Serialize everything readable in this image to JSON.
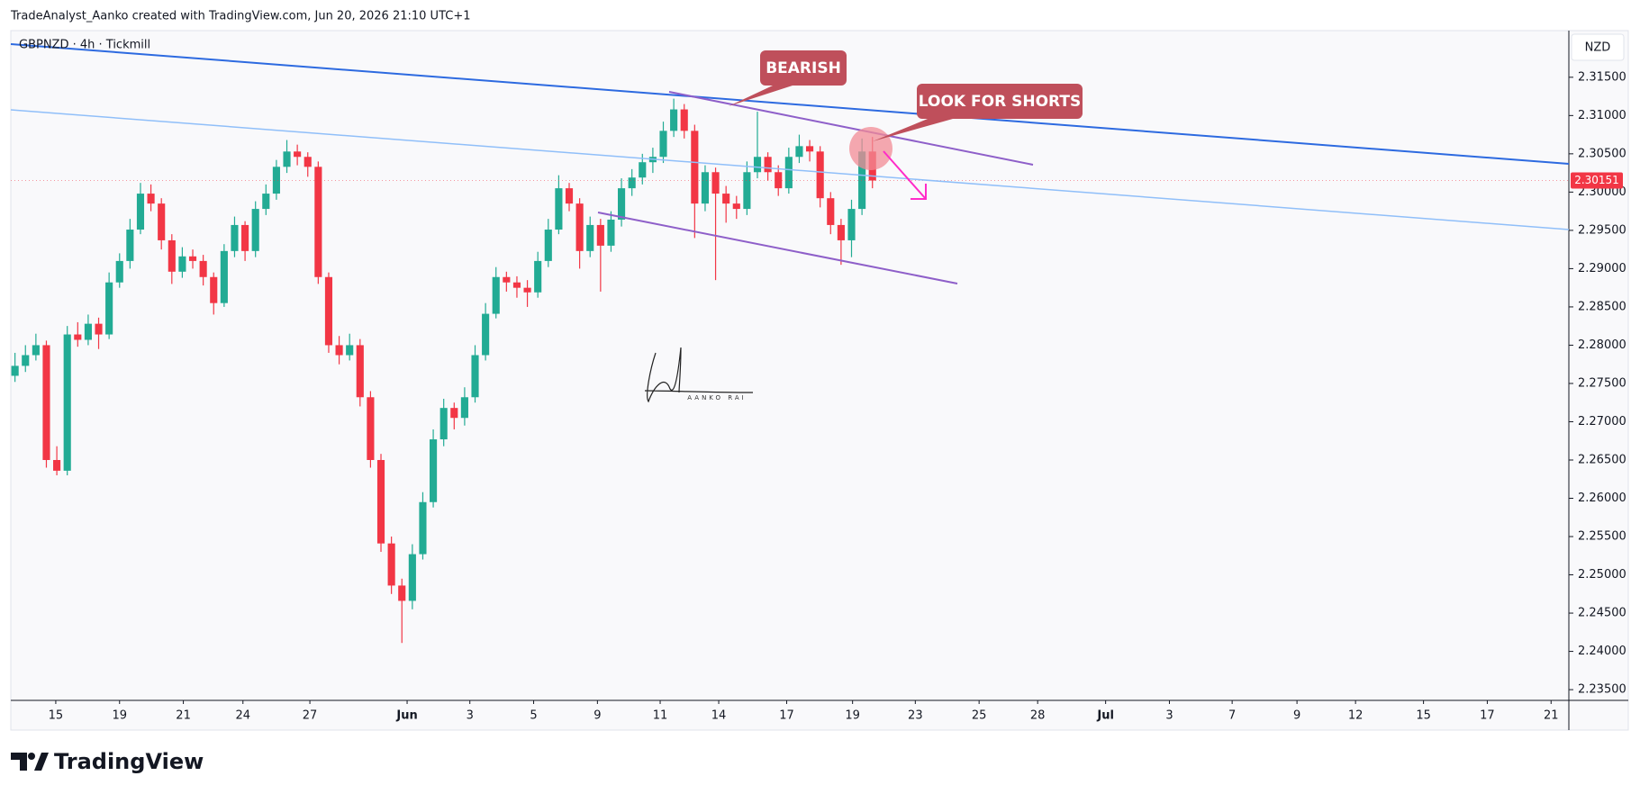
{
  "chart_data": {
    "type": "candlestick",
    "header": "TradeAnalyst_Aanko created with TradingView.com, Jun 20, 2026 21:10 UTC+1",
    "symbol": "GBPNZD · 4h · Tickmill",
    "currency": "NZD",
    "annotations": [
      "BEARISH",
      "LOOK FOR SHORTS"
    ],
    "signature": "AANKO RAI",
    "brand": "TradingView",
    "up_color": "#22ab94",
    "down_color": "#f23645",
    "open": [
      2.276,
      2.2773,
      2.2787,
      2.28,
      2.265,
      2.2636,
      2.2814,
      2.2807,
      2.2828,
      2.2814,
      2.2882,
      2.291,
      2.2951,
      2.2998,
      2.2985,
      2.2937,
      2.2896,
      2.2916,
      2.291,
      2.2889,
      2.2855,
      2.2923,
      2.2957,
      2.2923,
      2.2978,
      2.2998,
      2.3033,
      2.3053,
      2.3046,
      2.3033,
      2.2889,
      2.28,
      2.2787,
      2.28,
      2.2732,
      2.265,
      2.2541,
      2.2486,
      2.2466,
      2.2527,
      2.2595,
      2.2677,
      2.2718,
      2.2705,
      2.2732,
      2.2787,
      2.2841,
      2.2889,
      2.2882,
      2.2875,
      2.2869,
      2.291,
      2.2951,
      2.3005,
      2.2985,
      2.2923,
      2.2957,
      2.293,
      2.2964,
      2.3005,
      2.3019,
      2.3039,
      2.3046,
      2.308,
      2.3108,
      2.308,
      2.2985,
      2.3026,
      2.2998,
      2.2985,
      2.2978,
      2.3026,
      2.3046,
      2.3026,
      2.3005,
      2.3046,
      2.306,
      2.3053,
      2.2992,
      2.2957,
      2.2937,
      2.2978,
      2.3053
    ],
    "high": [
      2.279,
      2.28,
      2.2815,
      2.2806,
      2.2668,
      2.2825,
      2.283,
      2.284,
      2.2836,
      2.2895,
      2.292,
      2.2965,
      2.3012,
      2.301,
      2.2992,
      2.2945,
      2.2928,
      2.2925,
      2.2918,
      2.2895,
      2.2932,
      2.2968,
      2.2962,
      2.2988,
      2.301,
      2.3042,
      2.3068,
      2.3062,
      2.3052,
      2.304,
      2.2895,
      2.2812,
      2.2815,
      2.2808,
      2.274,
      2.2658,
      2.255,
      2.2495,
      2.254,
      2.2608,
      2.269,
      2.273,
      2.2725,
      2.2745,
      2.28,
      2.2855,
      2.2902,
      2.2896,
      2.289,
      2.2885,
      2.2922,
      2.2965,
      2.3022,
      2.3012,
      2.2992,
      2.2968,
      2.2965,
      2.2975,
      2.3018,
      2.303,
      2.305,
      2.3058,
      2.3092,
      2.3122,
      2.3115,
      2.3088,
      2.3035,
      2.3032,
      2.3008,
      2.2995,
      2.304,
      2.3105,
      2.3052,
      2.3035,
      2.3058,
      2.3075,
      2.3068,
      2.306,
      2.3,
      2.2965,
      2.299,
      2.307,
      2.3072
    ],
    "low": [
      2.2752,
      2.2765,
      2.278,
      2.264,
      2.263,
      2.263,
      2.2798,
      2.28,
      2.2795,
      2.2808,
      2.2875,
      2.29,
      2.2945,
      2.2975,
      2.2925,
      2.288,
      2.2888,
      2.29,
      2.2878,
      2.284,
      2.285,
      2.2915,
      2.291,
      2.2915,
      2.297,
      2.299,
      2.3025,
      2.3035,
      2.302,
      2.288,
      2.279,
      2.2775,
      2.278,
      2.272,
      2.264,
      2.253,
      2.2475,
      2.2411,
      2.2455,
      2.252,
      2.2588,
      2.2668,
      2.269,
      2.2695,
      2.2725,
      2.278,
      2.2835,
      2.287,
      2.2862,
      2.285,
      2.2862,
      2.2902,
      2.2945,
      2.2975,
      2.29,
      2.2915,
      2.287,
      2.2922,
      2.2955,
      2.2995,
      2.301,
      2.3025,
      2.3038,
      2.3072,
      2.307,
      2.294,
      2.2975,
      2.2885,
      2.296,
      2.2965,
      2.297,
      2.3018,
      2.3015,
      2.2995,
      2.2998,
      2.3038,
      2.304,
      2.298,
      2.2945,
      2.2905,
      2.2915,
      2.297,
      2.3005
    ],
    "close": [
      2.2773,
      2.2787,
      2.28,
      2.265,
      2.2636,
      2.2814,
      2.2807,
      2.2828,
      2.2814,
      2.2882,
      2.291,
      2.2951,
      2.2998,
      2.2985,
      2.2937,
      2.2896,
      2.2916,
      2.291,
      2.2889,
      2.2855,
      2.2923,
      2.2957,
      2.2923,
      2.2978,
      2.2998,
      2.3033,
      2.3053,
      2.3046,
      2.3033,
      2.2889,
      2.28,
      2.2787,
      2.28,
      2.2732,
      2.265,
      2.2541,
      2.2486,
      2.2466,
      2.2527,
      2.2595,
      2.2677,
      2.2718,
      2.2705,
      2.2732,
      2.2787,
      2.2841,
      2.2889,
      2.2882,
      2.2875,
      2.2869,
      2.291,
      2.2951,
      2.3005,
      2.2985,
      2.2923,
      2.2957,
      2.293,
      2.2964,
      2.3005,
      2.3019,
      2.3039,
      2.3046,
      2.308,
      2.3108,
      2.308,
      2.2985,
      2.3026,
      2.2998,
      2.2985,
      2.2978,
      2.3026,
      2.3046,
      2.3026,
      2.3005,
      2.3046,
      2.306,
      2.3053,
      2.2992,
      2.2957,
      2.2937,
      2.2978,
      2.3053,
      2.30151
    ],
    "xlim": [
      -0.4,
      148.6
    ],
    "xticks": [
      {
        "value": 3.9,
        "label": "15"
      },
      {
        "value": 10,
        "label": "19"
      },
      {
        "value": 16.1,
        "label": "21"
      },
      {
        "value": 21.8,
        "label": "24"
      },
      {
        "value": 28.2,
        "label": "27"
      },
      {
        "value": 37.5,
        "label": "Jun"
      },
      {
        "value": 43.5,
        "label": "3"
      },
      {
        "value": 49.6,
        "label": "5"
      },
      {
        "value": 55.7,
        "label": "9"
      },
      {
        "value": 61.7,
        "label": "11"
      },
      {
        "value": 67.3,
        "label": "14"
      },
      {
        "value": 73.8,
        "label": "17"
      },
      {
        "value": 80.1,
        "label": "19"
      },
      {
        "value": 86.1,
        "label": "23"
      },
      {
        "value": 92.2,
        "label": "25"
      },
      {
        "value": 97.8,
        "label": "28"
      },
      {
        "value": 104.3,
        "label": "Jul"
      },
      {
        "value": 110.4,
        "label": "3"
      },
      {
        "value": 116.4,
        "label": "7"
      },
      {
        "value": 122.6,
        "label": "9"
      },
      {
        "value": 128.2,
        "label": "12"
      },
      {
        "value": 134.7,
        "label": "15"
      },
      {
        "value": 140.8,
        "label": "17"
      },
      {
        "value": 146.9,
        "label": "21"
      }
    ],
    "ylim": [
      2.2336,
      2.321
    ],
    "yticks": [
      {
        "value": 2.235,
        "label": "2.23500"
      },
      {
        "value": 2.24,
        "label": "2.24000"
      },
      {
        "value": 2.245,
        "label": "2.24500"
      },
      {
        "value": 2.25,
        "label": "2.25000"
      },
      {
        "value": 2.255,
        "label": "2.25500"
      },
      {
        "value": 2.26,
        "label": "2.26000"
      },
      {
        "value": 2.265,
        "label": "2.26500"
      },
      {
        "value": 2.27,
        "label": "2.27000"
      },
      {
        "value": 2.275,
        "label": "2.27500"
      },
      {
        "value": 2.28,
        "label": "2.28000"
      },
      {
        "value": 2.285,
        "label": "2.28500"
      },
      {
        "value": 2.29,
        "label": "2.29000"
      },
      {
        "value": 2.295,
        "label": "2.29500"
      },
      {
        "value": 2.3,
        "label": "2.30000"
      },
      {
        "value": 2.305,
        "label": "2.30500"
      },
      {
        "value": 2.31,
        "label": "2.31000"
      },
      {
        "value": 2.315,
        "label": "2.31500"
      }
    ],
    "grid": false
  }
}
